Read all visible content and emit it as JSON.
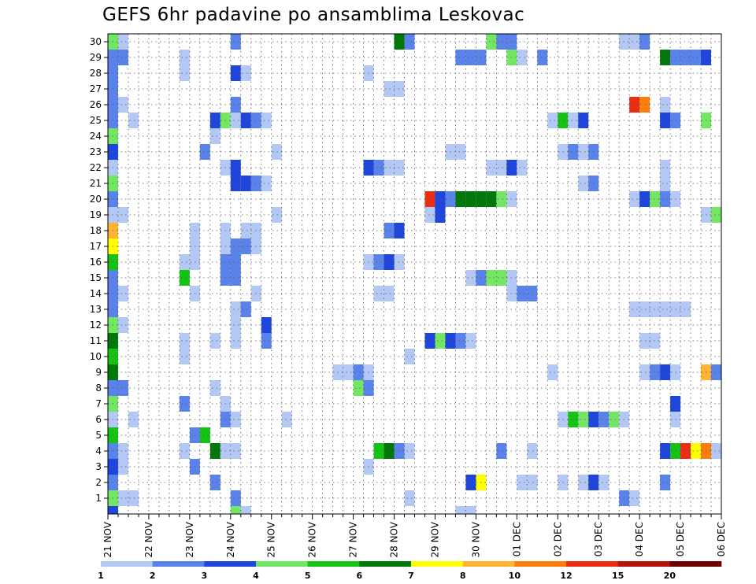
{
  "chart_data": {
    "type": "heatmap",
    "title": "GEFS 6hr padavine po ansamblima Leskovac",
    "x_tick_labels": [
      "21 NOV",
      "22 NOV",
      "23 NOV",
      "24 NOV",
      "25 NOV",
      "26 NOV",
      "27 NOV",
      "28 NOV",
      "29 NOV",
      "30 NOV",
      "01 DEC",
      "02 DEC",
      "03 DEC",
      "04 DEC",
      "05 DEC",
      "06 DEC"
    ],
    "y_tick_labels": [
      "1",
      "2",
      "3",
      "4",
      "5",
      "6",
      "7",
      "8",
      "9",
      "10",
      "11",
      "12",
      "13",
      "14",
      "15",
      "16",
      "17",
      "18",
      "19",
      "20",
      "21",
      "22",
      "23",
      "24",
      "25",
      "26",
      "27",
      "28",
      "29",
      "30"
    ],
    "time_steps_per_day": 4,
    "n_time_steps": 61,
    "members": 30,
    "grid": true,
    "legend": {
      "placement": "bottom",
      "labels": [
        "1",
        "2",
        "3",
        "4",
        "5",
        "6",
        "7",
        "8",
        "10",
        "12",
        "15",
        "20"
      ],
      "colors": [
        "#b4c8f5",
        "#5a82eb",
        "#1e46dc",
        "#73e664",
        "#14c314",
        "#00780a",
        "#ffff00",
        "#ffb432",
        "#ff7d0a",
        "#eb2d14",
        "#b4140a",
        "#6e0000"
      ]
    },
    "series": [
      {
        "member": 30,
        "cells": [
          [
            0,
            3
          ],
          [
            1,
            0
          ],
          [
            12,
            1
          ],
          [
            28,
            5
          ],
          [
            29,
            1
          ],
          [
            37,
            3
          ],
          [
            38,
            1
          ],
          [
            39,
            1
          ],
          [
            50,
            0
          ],
          [
            51,
            0
          ],
          [
            52,
            1
          ]
        ]
      },
      {
        "member": 29,
        "cells": [
          [
            0,
            1
          ],
          [
            1,
            1
          ],
          [
            7,
            0
          ],
          [
            34,
            1
          ],
          [
            35,
            1
          ],
          [
            36,
            1
          ],
          [
            39,
            3
          ],
          [
            40,
            0
          ],
          [
            42,
            1
          ],
          [
            54,
            5
          ],
          [
            55,
            1
          ],
          [
            56,
            1
          ],
          [
            57,
            1
          ],
          [
            58,
            2
          ]
        ]
      },
      {
        "member": 28,
        "cells": [
          [
            0,
            1
          ],
          [
            7,
            0
          ],
          [
            12,
            2
          ],
          [
            13,
            0
          ],
          [
            25,
            0
          ]
        ]
      },
      {
        "member": 27,
        "cells": [
          [
            0,
            1
          ],
          [
            27,
            0
          ],
          [
            28,
            0
          ]
        ]
      },
      {
        "member": 26,
        "cells": [
          [
            0,
            1
          ],
          [
            1,
            0
          ],
          [
            12,
            1
          ],
          [
            51,
            9
          ],
          [
            52,
            8
          ],
          [
            54,
            0
          ]
        ]
      },
      {
        "member": 25,
        "cells": [
          [
            0,
            1
          ],
          [
            2,
            0
          ],
          [
            10,
            2
          ],
          [
            11,
            3
          ],
          [
            12,
            0
          ],
          [
            13,
            2
          ],
          [
            14,
            1
          ],
          [
            15,
            0
          ],
          [
            43,
            0
          ],
          [
            44,
            4
          ],
          [
            45,
            0
          ],
          [
            46,
            2
          ],
          [
            54,
            2
          ],
          [
            55,
            1
          ],
          [
            58,
            3
          ]
        ]
      },
      {
        "member": 24,
        "cells": [
          [
            0,
            3
          ],
          [
            10,
            0
          ]
        ]
      },
      {
        "member": 23,
        "cells": [
          [
            0,
            2
          ],
          [
            9,
            1
          ],
          [
            16,
            0
          ],
          [
            33,
            0
          ],
          [
            34,
            0
          ],
          [
            44,
            0
          ],
          [
            45,
            1
          ],
          [
            46,
            0
          ],
          [
            47,
            1
          ]
        ]
      },
      {
        "member": 22,
        "cells": [
          [
            0,
            0
          ],
          [
            11,
            0
          ],
          [
            12,
            2
          ],
          [
            25,
            2
          ],
          [
            26,
            1
          ],
          [
            27,
            0
          ],
          [
            28,
            0
          ],
          [
            37,
            0
          ],
          [
            38,
            0
          ],
          [
            39,
            2
          ],
          [
            40,
            0
          ],
          [
            54,
            0
          ]
        ]
      },
      {
        "member": 21,
        "cells": [
          [
            0,
            3
          ],
          [
            12,
            2
          ],
          [
            13,
            2
          ],
          [
            14,
            1
          ],
          [
            15,
            0
          ],
          [
            46,
            0
          ],
          [
            47,
            1
          ],
          [
            54,
            0
          ]
        ]
      },
      {
        "member": 20,
        "cells": [
          [
            0,
            1
          ],
          [
            31,
            9
          ],
          [
            32,
            2
          ],
          [
            33,
            1
          ],
          [
            34,
            5
          ],
          [
            35,
            5
          ],
          [
            36,
            5
          ],
          [
            37,
            5
          ],
          [
            38,
            3
          ],
          [
            39,
            0
          ],
          [
            51,
            0
          ],
          [
            52,
            2
          ],
          [
            53,
            3
          ],
          [
            54,
            1
          ],
          [
            55,
            0
          ]
        ]
      },
      {
        "member": 19,
        "cells": [
          [
            0,
            0
          ],
          [
            1,
            0
          ],
          [
            16,
            0
          ],
          [
            31,
            0
          ],
          [
            32,
            2
          ],
          [
            58,
            0
          ],
          [
            59,
            3
          ]
        ]
      },
      {
        "member": 18,
        "cells": [
          [
            0,
            7
          ],
          [
            8,
            0
          ],
          [
            11,
            0
          ],
          [
            13,
            0
          ],
          [
            14,
            0
          ],
          [
            27,
            1
          ],
          [
            28,
            2
          ]
        ]
      },
      {
        "member": 17,
        "cells": [
          [
            0,
            6
          ],
          [
            8,
            0
          ],
          [
            11,
            0
          ],
          [
            12,
            1
          ],
          [
            13,
            1
          ],
          [
            14,
            0
          ]
        ]
      },
      {
        "member": 16,
        "cells": [
          [
            0,
            4
          ],
          [
            7,
            0
          ],
          [
            8,
            0
          ],
          [
            11,
            1
          ],
          [
            12,
            1
          ],
          [
            25,
            0
          ],
          [
            26,
            1
          ],
          [
            27,
            2
          ],
          [
            28,
            0
          ]
        ]
      },
      {
        "member": 15,
        "cells": [
          [
            0,
            1
          ],
          [
            7,
            4
          ],
          [
            11,
            1
          ],
          [
            12,
            1
          ],
          [
            35,
            0
          ],
          [
            36,
            1
          ],
          [
            37,
            3
          ],
          [
            38,
            3
          ],
          [
            39,
            0
          ]
        ]
      },
      {
        "member": 14,
        "cells": [
          [
            0,
            1
          ],
          [
            1,
            0
          ],
          [
            8,
            0
          ],
          [
            14,
            0
          ],
          [
            26,
            0
          ],
          [
            27,
            0
          ],
          [
            39,
            0
          ],
          [
            40,
            1
          ],
          [
            41,
            1
          ]
        ]
      },
      {
        "member": 13,
        "cells": [
          [
            0,
            1
          ],
          [
            12,
            0
          ],
          [
            13,
            1
          ],
          [
            51,
            0
          ],
          [
            52,
            0
          ],
          [
            53,
            0
          ],
          [
            54,
            0
          ],
          [
            55,
            0
          ],
          [
            56,
            0
          ]
        ]
      },
      {
        "member": 12,
        "cells": [
          [
            0,
            3
          ],
          [
            1,
            0
          ],
          [
            12,
            0
          ],
          [
            15,
            2
          ]
        ]
      },
      {
        "member": 11,
        "cells": [
          [
            0,
            5
          ],
          [
            7,
            0
          ],
          [
            10,
            0
          ],
          [
            12,
            0
          ],
          [
            15,
            1
          ],
          [
            31,
            2
          ],
          [
            32,
            3
          ],
          [
            33,
            2
          ],
          [
            34,
            1
          ],
          [
            35,
            0
          ],
          [
            52,
            0
          ],
          [
            53,
            0
          ]
        ]
      },
      {
        "member": 10,
        "cells": [
          [
            0,
            4
          ],
          [
            7,
            0
          ],
          [
            29,
            0
          ]
        ]
      },
      {
        "member": 9,
        "cells": [
          [
            0,
            5
          ],
          [
            22,
            0
          ],
          [
            23,
            0
          ],
          [
            24,
            1
          ],
          [
            25,
            0
          ],
          [
            43,
            0
          ],
          [
            52,
            0
          ],
          [
            53,
            1
          ],
          [
            54,
            2
          ],
          [
            55,
            0
          ],
          [
            58,
            7
          ],
          [
            59,
            1
          ]
        ]
      },
      {
        "member": 8,
        "cells": [
          [
            0,
            1
          ],
          [
            1,
            1
          ],
          [
            10,
            0
          ],
          [
            24,
            3
          ],
          [
            25,
            1
          ]
        ]
      },
      {
        "member": 7,
        "cells": [
          [
            0,
            3
          ],
          [
            7,
            1
          ],
          [
            11,
            0
          ],
          [
            55,
            2
          ]
        ]
      },
      {
        "member": 6,
        "cells": [
          [
            0,
            0
          ],
          [
            2,
            0
          ],
          [
            11,
            1
          ],
          [
            12,
            0
          ],
          [
            17,
            0
          ],
          [
            44,
            0
          ],
          [
            45,
            4
          ],
          [
            46,
            3
          ],
          [
            47,
            2
          ],
          [
            48,
            1
          ],
          [
            49,
            3
          ],
          [
            50,
            0
          ],
          [
            55,
            0
          ]
        ]
      },
      {
        "member": 5,
        "cells": [
          [
            0,
            4
          ],
          [
            8,
            1
          ],
          [
            9,
            4
          ]
        ]
      },
      {
        "member": 4,
        "cells": [
          [
            0,
            1
          ],
          [
            1,
            0
          ],
          [
            7,
            0
          ],
          [
            10,
            5
          ],
          [
            11,
            0
          ],
          [
            12,
            0
          ],
          [
            26,
            4
          ],
          [
            27,
            5
          ],
          [
            28,
            1
          ],
          [
            29,
            0
          ],
          [
            38,
            1
          ],
          [
            41,
            0
          ],
          [
            54,
            2
          ],
          [
            55,
            4
          ],
          [
            56,
            9
          ],
          [
            57,
            6
          ],
          [
            58,
            8
          ],
          [
            59,
            0
          ]
        ]
      },
      {
        "member": 3,
        "cells": [
          [
            0,
            2
          ],
          [
            1,
            0
          ],
          [
            8,
            1
          ],
          [
            25,
            0
          ]
        ]
      },
      {
        "member": 2,
        "cells": [
          [
            0,
            1
          ],
          [
            10,
            1
          ],
          [
            35,
            2
          ],
          [
            36,
            6
          ],
          [
            40,
            0
          ],
          [
            41,
            0
          ],
          [
            44,
            0
          ],
          [
            46,
            0
          ],
          [
            47,
            2
          ],
          [
            48,
            0
          ],
          [
            54,
            1
          ]
        ]
      },
      {
        "member": 1,
        "cells": [
          [
            0,
            3
          ],
          [
            1,
            0
          ],
          [
            2,
            0
          ],
          [
            12,
            1
          ],
          [
            29,
            0
          ],
          [
            50,
            1
          ],
          [
            51,
            0
          ]
        ]
      }
    ],
    "extra_bottom_cells": [
      [
        0,
        2
      ],
      [
        12,
        3
      ],
      [
        13,
        0
      ],
      [
        34,
        0
      ],
      [
        35,
        0
      ]
    ]
  }
}
